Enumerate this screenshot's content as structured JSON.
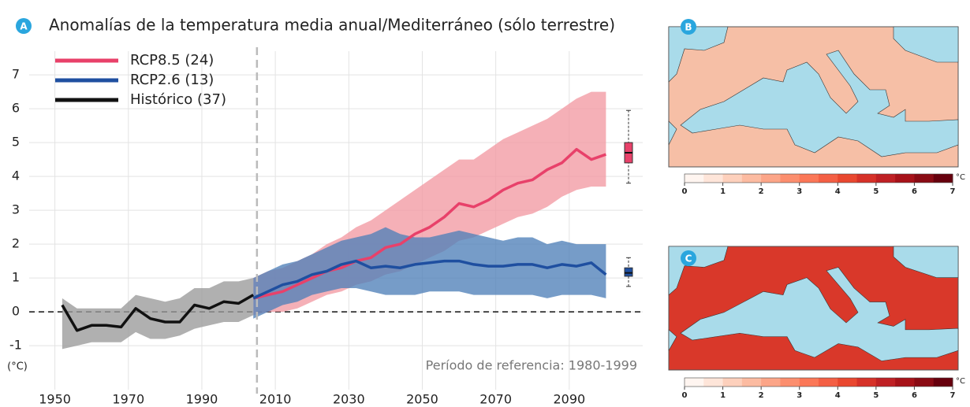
{
  "chart_data": {
    "type": "line",
    "panel_label": "A",
    "title": "Anomalías de la temperatura media anual/Mediterráneo (sólo terrestre)",
    "y_unit_label": "(°C)",
    "annotation": "Período de referencia: 1980-1999",
    "x": [
      1952,
      1956,
      1960,
      1964,
      1968,
      1972,
      1976,
      1980,
      1984,
      1988,
      1992,
      1996,
      2000,
      2004,
      2008,
      2012,
      2016,
      2020,
      2024,
      2028,
      2032,
      2036,
      2040,
      2044,
      2048,
      2052,
      2056,
      2060,
      2064,
      2068,
      2072,
      2076,
      2080,
      2084,
      2088,
      2092,
      2096,
      2100
    ],
    "xlim": [
      1943,
      2110
    ],
    "xticks": [
      1950,
      1970,
      1990,
      2010,
      2030,
      2050,
      2070,
      2090
    ],
    "ylim": [
      -2.3,
      7.7
    ],
    "yticks": [
      -1,
      0,
      1,
      2,
      3,
      4,
      5,
      6,
      7
    ],
    "grid": true,
    "divider_x": 2005,
    "reference_line": 0,
    "series": [
      {
        "name": "RCP8.5 (24)",
        "color": "#e8416a",
        "band_color": "#f29aa3",
        "values": [
          null,
          null,
          null,
          null,
          null,
          null,
          null,
          null,
          null,
          null,
          null,
          null,
          null,
          0.4,
          0.5,
          0.6,
          0.8,
          1.0,
          1.2,
          1.3,
          1.5,
          1.6,
          1.9,
          2.0,
          2.3,
          2.5,
          2.8,
          3.2,
          3.1,
          3.3,
          3.6,
          3.8,
          3.9,
          4.2,
          4.4,
          4.8,
          4.5,
          4.65
        ],
        "low": [
          null,
          null,
          null,
          null,
          null,
          null,
          null,
          null,
          null,
          null,
          null,
          null,
          null,
          -0.1,
          0.0,
          0.0,
          0.1,
          0.3,
          0.5,
          0.6,
          0.8,
          0.9,
          1.1,
          1.2,
          1.4,
          1.6,
          1.8,
          2.1,
          2.2,
          2.4,
          2.6,
          2.8,
          2.9,
          3.1,
          3.4,
          3.6,
          3.7,
          3.7
        ],
        "high": [
          null,
          null,
          null,
          null,
          null,
          null,
          null,
          null,
          null,
          null,
          null,
          null,
          null,
          1.0,
          1.2,
          1.3,
          1.5,
          1.7,
          2.0,
          2.2,
          2.5,
          2.7,
          3.0,
          3.3,
          3.6,
          3.9,
          4.2,
          4.5,
          4.5,
          4.8,
          5.1,
          5.3,
          5.5,
          5.7,
          6.0,
          6.3,
          6.5,
          6.5
        ],
        "box": {
          "min": 3.8,
          "q1": 4.4,
          "median": 4.7,
          "q3": 5.0,
          "max": 5.95
        }
      },
      {
        "name": "RCP2.6 (13)",
        "color": "#1f4fa0",
        "band_color": "#4f80b8",
        "values": [
          null,
          null,
          null,
          null,
          null,
          null,
          null,
          null,
          null,
          null,
          null,
          null,
          null,
          0.4,
          0.6,
          0.8,
          0.9,
          1.1,
          1.2,
          1.4,
          1.5,
          1.3,
          1.35,
          1.3,
          1.4,
          1.45,
          1.5,
          1.5,
          1.4,
          1.35,
          1.35,
          1.4,
          1.4,
          1.3,
          1.4,
          1.35,
          1.45,
          1.1
        ],
        "low": [
          null,
          null,
          null,
          null,
          null,
          null,
          null,
          null,
          null,
          null,
          null,
          null,
          null,
          -0.2,
          0.0,
          0.2,
          0.3,
          0.5,
          0.6,
          0.7,
          0.7,
          0.6,
          0.5,
          0.5,
          0.5,
          0.6,
          0.6,
          0.6,
          0.5,
          0.5,
          0.5,
          0.5,
          0.5,
          0.4,
          0.5,
          0.5,
          0.5,
          0.4
        ],
        "high": [
          null,
          null,
          null,
          null,
          null,
          null,
          null,
          null,
          null,
          null,
          null,
          null,
          null,
          1.0,
          1.2,
          1.4,
          1.5,
          1.7,
          1.9,
          2.1,
          2.2,
          2.3,
          2.5,
          2.3,
          2.2,
          2.2,
          2.3,
          2.4,
          2.3,
          2.2,
          2.1,
          2.2,
          2.2,
          2.0,
          2.1,
          2.0,
          2.0,
          2.0
        ],
        "box": {
          "min": 0.75,
          "q1": 1.05,
          "median": 1.15,
          "q3": 1.3,
          "max": 1.6
        }
      },
      {
        "name": "Histórico (37)",
        "color": "#111111",
        "band_color": "#9a9a9a",
        "values": [
          0.2,
          -0.55,
          -0.4,
          -0.4,
          -0.45,
          0.1,
          -0.2,
          -0.3,
          -0.3,
          0.2,
          0.1,
          0.3,
          0.25,
          0.5,
          null,
          null,
          null,
          null,
          null,
          null,
          null,
          null,
          null,
          null,
          null,
          null,
          null,
          null,
          null,
          null,
          null,
          null,
          null,
          null,
          null,
          null,
          null,
          null
        ],
        "low": [
          -1.1,
          -1.0,
          -0.9,
          -0.9,
          -0.9,
          -0.6,
          -0.8,
          -0.8,
          -0.7,
          -0.5,
          -0.4,
          -0.3,
          -0.3,
          -0.1,
          null,
          null,
          null,
          null,
          null,
          null,
          null,
          null,
          null,
          null,
          null,
          null,
          null,
          null,
          null,
          null,
          null,
          null,
          null,
          null,
          null,
          null,
          null,
          null
        ],
        "high": [
          0.4,
          0.1,
          0.1,
          0.1,
          0.1,
          0.5,
          0.4,
          0.3,
          0.4,
          0.7,
          0.7,
          0.9,
          0.9,
          1.0,
          null,
          null,
          null,
          null,
          null,
          null,
          null,
          null,
          null,
          null,
          null,
          null,
          null,
          null,
          null,
          null,
          null,
          null,
          null,
          null,
          null,
          null,
          null,
          null
        ]
      }
    ]
  },
  "maps": [
    {
      "label": "B",
      "land_color": "#f6bfa6",
      "colorbar": {
        "ticks": [
          0,
          1,
          2,
          3,
          4,
          5,
          6,
          7
        ],
        "unit": "°C",
        "colors": [
          "#fff5f0",
          "#fee5d9",
          "#fdd0bc",
          "#fcbba1",
          "#fca588",
          "#fc8e6e",
          "#fb7757",
          "#f45f44",
          "#e9472f",
          "#d63128",
          "#bf2024",
          "#a71219",
          "#8a0b14",
          "#67000d"
        ]
      }
    },
    {
      "label": "C",
      "land_color": "#d9382a",
      "colorbar": {
        "ticks": [
          0,
          1,
          2,
          3,
          4,
          5,
          6,
          7
        ],
        "unit": "°C",
        "colors": [
          "#fff5f0",
          "#fee5d9",
          "#fdd0bc",
          "#fcbba1",
          "#fca588",
          "#fc8e6e",
          "#fb7757",
          "#f45f44",
          "#e9472f",
          "#d63128",
          "#bf2024",
          "#a71219",
          "#8a0b14",
          "#67000d"
        ]
      }
    }
  ]
}
